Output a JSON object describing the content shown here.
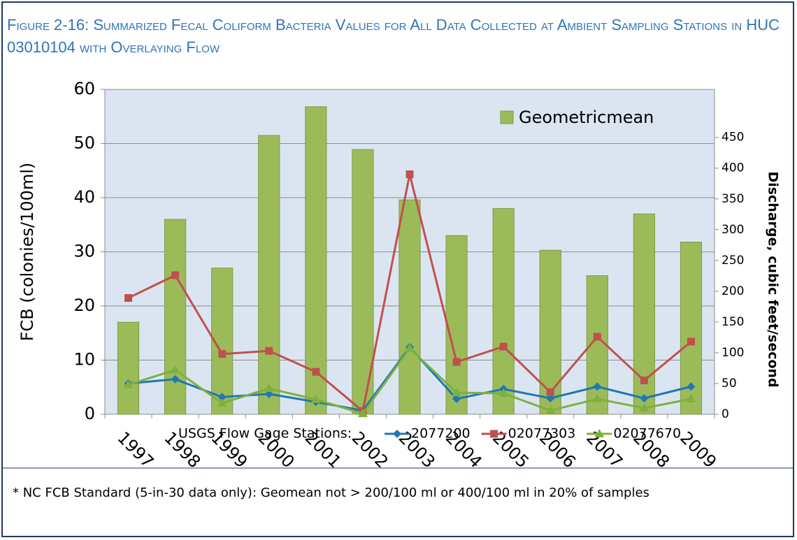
{
  "chart_data": {
    "type": "bar_line",
    "title": "Figure 2-16: Summarized Fecal Coliform Bacteria Values for All Data Collected at Ambient Sampling Stations in HUC 03010104 with Overlaying Flow",
    "ylabel": "FCB  (colonies/100ml)",
    "y2label": "Discharge, cubic feet/second",
    "categories": [
      "1997",
      "1998",
      "1999",
      "2000",
      "2001",
      "2002",
      "2003",
      "2004",
      "2005",
      "2006",
      "2007",
      "2008",
      "2009"
    ],
    "series": [
      {
        "name": "Geometricmean",
        "type": "bar",
        "color": "#9bbb59",
        "values": [
          17,
          36,
          27,
          51.5,
          56.8,
          48.9,
          39.6,
          33,
          38,
          30.3,
          25.6,
          37,
          31.8
        ]
      },
      {
        "name": "2077200",
        "type": "line",
        "axis": "y2",
        "marker": "diamond",
        "color": "#1f77b4",
        "values": [
          50,
          57,
          28,
          33,
          20,
          6,
          109,
          25,
          41,
          26,
          45,
          26,
          45
        ]
      },
      {
        "name": "02077303",
        "type": "line",
        "axis": "y2",
        "marker": "square",
        "color": "#c0504d",
        "values": [
          189,
          226,
          98,
          103,
          69,
          5,
          390,
          85,
          110,
          36,
          126,
          55,
          118
        ]
      },
      {
        "name": "02077670",
        "type": "line",
        "axis": "y2",
        "marker": "triangle",
        "color": "#7fb03f",
        "values": [
          48,
          72,
          18,
          42,
          24,
          1,
          107,
          35,
          34,
          6,
          25,
          10,
          25
        ]
      }
    ],
    "ylim": [
      0,
      60
    ],
    "yticks": [
      0,
      10,
      20,
      30,
      40,
      50,
      60
    ],
    "y2lim": [
      0,
      528
    ],
    "y2ticks": [
      0,
      50,
      100,
      150,
      200,
      250,
      300,
      350,
      400,
      450
    ],
    "grid": true,
    "legend_title": "USGS Flow Gage Stations:",
    "note": "* NC FCB Standard (5-in-30 data only): Geomean not > 200/100 ml or 400/100 ml in 20% of samples"
  }
}
